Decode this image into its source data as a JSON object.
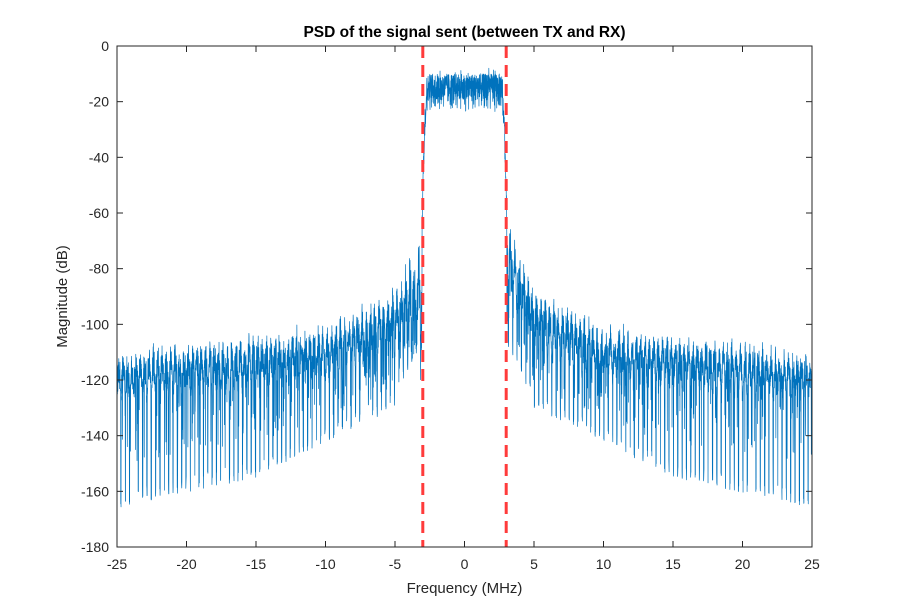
{
  "chart_data": {
    "type": "line",
    "title": "PSD of the signal sent (between TX and RX)",
    "xlabel": "Frequency (MHz)",
    "ylabel": "Magnitude (dB)",
    "xlim": [
      -25,
      25
    ],
    "ylim": [
      -180,
      0
    ],
    "xticks": [
      -25,
      -20,
      -15,
      -10,
      -5,
      0,
      5,
      10,
      15,
      20,
      25
    ],
    "yticks": [
      0,
      -20,
      -40,
      -60,
      -80,
      -100,
      -120,
      -140,
      -160,
      -180
    ],
    "grid": false,
    "legend": "none",
    "colors": {
      "series": "#0072BD",
      "markers": "#FF3B3B",
      "axes": "#262626"
    },
    "series": [
      {
        "style": "solid",
        "passband": {
          "from": -3.0,
          "to": 3.0,
          "top": -10,
          "floor": -24,
          "peak": -8
        },
        "roll_off": {
          "edge_left": -3.0,
          "edge_right": 3.0,
          "level_at_edge": -60
        },
        "sidelobes": {
          "envelope_top": [
            [
              -25,
              -108
            ],
            [
              -10,
              -98
            ],
            [
              -5,
              -85
            ],
            [
              -3.3,
              -62
            ],
            [
              3.3,
              -62
            ],
            [
              5,
              -85
            ],
            [
              10,
              -98
            ],
            [
              25,
              -108
            ]
          ],
          "envelope_mid": [
            [
              -25,
              -120
            ],
            [
              -10,
              -112
            ],
            [
              -5,
              -100
            ],
            [
              3.3,
              -78
            ],
            [
              5,
              -100
            ],
            [
              10,
              -112
            ],
            [
              25,
              -120
            ]
          ],
          "null_depth": [
            [
              -25,
              -166
            ],
            [
              -15,
              -155
            ],
            [
              -5,
              -130
            ],
            [
              -3.4,
              -110
            ],
            [
              3.4,
              -110
            ],
            [
              5,
              -130
            ],
            [
              15,
              -155
            ],
            [
              25,
              -166
            ]
          ],
          "null_spacing_mhz": 0.3125
        }
      }
    ],
    "vertical_markers": [
      {
        "x": -3,
        "style": "dashed"
      },
      {
        "x": 3,
        "style": "dashed"
      }
    ]
  }
}
